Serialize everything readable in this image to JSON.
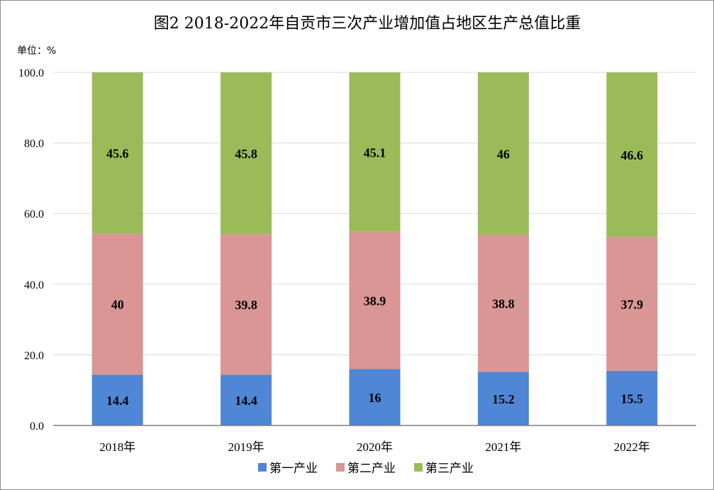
{
  "chart_data": {
    "type": "bar",
    "stacked": true,
    "title": "图2  2018-2022年自贡市三次产业增加值占地区生产总值比重",
    "unit_label": "单位：%",
    "categories": [
      "2018年",
      "2019年",
      "2020年",
      "2021年",
      "2022年"
    ],
    "series": [
      {
        "name": "第一产业",
        "color": "#4f86d5",
        "values": [
          14.4,
          14.4,
          16.0,
          15.2,
          15.5
        ]
      },
      {
        "name": "第二产业",
        "color": "#d99694",
        "values": [
          40.0,
          39.8,
          38.9,
          38.8,
          37.9
        ]
      },
      {
        "name": "第三产业",
        "color": "#9bbb59",
        "values": [
          45.6,
          45.8,
          45.1,
          46.0,
          46.6
        ]
      }
    ],
    "ylim": [
      0,
      100
    ],
    "yticks": [
      "0.0",
      "20.0",
      "40.0",
      "60.0",
      "80.0",
      "100.0"
    ],
    "grid": true,
    "legend_position": "bottom"
  }
}
